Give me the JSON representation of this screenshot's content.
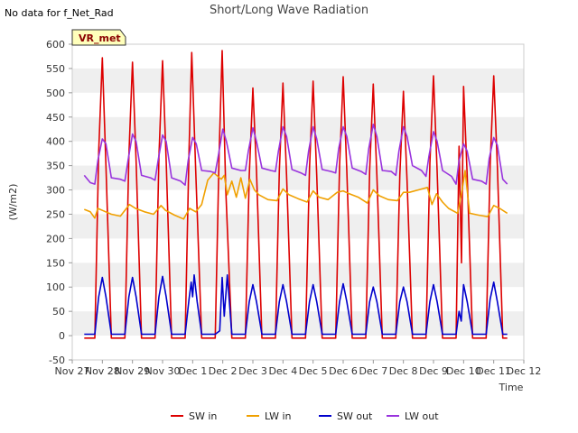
{
  "no_data_note": "No data for f_Net_Rad",
  "badge_label": "VR_met",
  "chart_data": {
    "type": "line",
    "title": "Short/Long Wave Radiation",
    "xlabel": "Time",
    "ylabel": "(W/m2)",
    "ylim": [
      -50,
      600
    ],
    "yticks": [
      -50,
      0,
      50,
      100,
      150,
      200,
      250,
      300,
      350,
      400,
      450,
      500,
      550,
      600
    ],
    "xlim": [
      0,
      15
    ],
    "xtick_labels": [
      "Nov 27",
      "Nov 28",
      "Nov 29",
      "Nov 30",
      "Dec 1",
      "Dec 2",
      "Dec 3",
      "Dec 4",
      "Dec 5",
      "Dec 6",
      "Dec 7",
      "Dec 8",
      "Dec 9",
      "Dec 10",
      "Dec 11",
      "Dec 12"
    ],
    "grid": "horizontal bands",
    "legend_position": "bottom",
    "x_unit": "days since Nov 27 00:00",
    "series": [
      {
        "name": "SW in",
        "color": "#dd0000",
        "x": [
          0.4,
          0.75,
          0.88,
          1.0,
          1.12,
          1.3,
          1.4,
          1.75,
          1.88,
          2.0,
          2.12,
          2.3,
          2.4,
          2.75,
          2.88,
          3.0,
          3.12,
          3.3,
          3.4,
          3.75,
          3.88,
          3.97,
          4.1,
          4.3,
          4.4,
          4.75,
          4.88,
          4.98,
          5.1,
          5.3,
          5.4,
          5.75,
          5.88,
          6.0,
          6.12,
          6.3,
          6.4,
          6.75,
          6.88,
          7.0,
          7.12,
          7.3,
          7.4,
          7.75,
          7.88,
          8.0,
          8.12,
          8.3,
          8.4,
          8.75,
          8.88,
          9.0,
          9.12,
          9.3,
          9.4,
          9.75,
          9.88,
          10.0,
          10.12,
          10.3,
          10.4,
          10.75,
          10.88,
          11.0,
          11.12,
          11.3,
          11.4,
          11.75,
          11.88,
          12.0,
          12.12,
          12.3,
          12.4,
          12.75,
          12.85,
          12.93,
          13.0,
          13.12,
          13.3,
          13.4,
          13.75,
          13.88,
          14.0,
          14.12,
          14.3,
          14.45
        ],
        "values": [
          -5,
          -5,
          380,
          572,
          350,
          -5,
          -5,
          -5,
          370,
          563,
          360,
          -5,
          -5,
          -5,
          370,
          566,
          360,
          -5,
          -5,
          -5,
          380,
          583,
          340,
          -5,
          -5,
          -5,
          380,
          587,
          300,
          -5,
          -5,
          -5,
          330,
          510,
          340,
          -5,
          -5,
          -5,
          340,
          520,
          330,
          -5,
          -5,
          -5,
          345,
          524,
          330,
          -5,
          -5,
          -5,
          350,
          533,
          340,
          -5,
          -5,
          -5,
          340,
          518,
          330,
          -5,
          -5,
          -5,
          330,
          503,
          320,
          -5,
          -5,
          -5,
          355,
          535,
          340,
          -5,
          -5,
          -5,
          390,
          150,
          513,
          330,
          -5,
          -5,
          -5,
          350,
          535,
          350,
          -5,
          -5
        ]
      },
      {
        "name": "LW in",
        "color": "#f0a000",
        "x": [
          0.4,
          0.6,
          0.75,
          0.85,
          1.0,
          1.3,
          1.6,
          1.9,
          2.1,
          2.4,
          2.7,
          2.95,
          3.1,
          3.4,
          3.7,
          3.9,
          4.1,
          4.3,
          4.5,
          4.7,
          4.95,
          5.05,
          5.15,
          5.3,
          5.45,
          5.6,
          5.75,
          5.9,
          6.05,
          6.2,
          6.5,
          6.8,
          7.0,
          7.2,
          7.5,
          7.8,
          8.0,
          8.2,
          8.5,
          8.8,
          9.0,
          9.2,
          9.5,
          9.8,
          10.0,
          10.2,
          10.5,
          10.8,
          11.0,
          11.2,
          11.5,
          11.8,
          11.95,
          12.1,
          12.3,
          12.5,
          12.8,
          12.95,
          13.05,
          13.2,
          13.5,
          13.8,
          14.0,
          14.2,
          14.45
        ],
        "values": [
          260,
          255,
          242,
          262,
          258,
          250,
          246,
          270,
          262,
          255,
          250,
          268,
          258,
          248,
          240,
          262,
          255,
          270,
          320,
          335,
          322,
          330,
          290,
          318,
          285,
          325,
          283,
          322,
          300,
          290,
          280,
          278,
          302,
          290,
          282,
          275,
          298,
          285,
          280,
          295,
          298,
          292,
          285,
          273,
          300,
          288,
          280,
          278,
          295,
          295,
          300,
          305,
          270,
          292,
          275,
          262,
          252,
          300,
          340,
          252,
          248,
          245,
          268,
          262,
          252
        ]
      },
      {
        "name": "SW out",
        "color": "#0000cc",
        "x": [
          0.4,
          0.75,
          0.88,
          1.0,
          1.12,
          1.3,
          1.4,
          1.75,
          1.88,
          2.0,
          2.12,
          2.3,
          2.4,
          2.75,
          2.88,
          3.0,
          3.12,
          3.3,
          3.4,
          3.75,
          3.88,
          3.95,
          4.0,
          4.05,
          4.15,
          4.3,
          4.6,
          4.75,
          4.9,
          4.98,
          5.05,
          5.15,
          5.3,
          5.4,
          5.75,
          5.88,
          6.0,
          6.12,
          6.3,
          6.4,
          6.75,
          6.88,
          7.0,
          7.12,
          7.3,
          7.4,
          7.75,
          7.88,
          8.0,
          8.12,
          8.3,
          8.4,
          8.75,
          8.88,
          9.0,
          9.12,
          9.3,
          9.4,
          9.75,
          9.88,
          10.0,
          10.12,
          10.3,
          10.4,
          10.75,
          10.88,
          11.0,
          11.12,
          11.3,
          11.4,
          11.75,
          11.88,
          12.0,
          12.12,
          12.3,
          12.4,
          12.75,
          12.85,
          12.92,
          13.0,
          13.12,
          13.3,
          13.4,
          13.75,
          13.88,
          14.0,
          14.12,
          14.3,
          14.45
        ],
        "values": [
          3,
          3,
          80,
          120,
          80,
          3,
          3,
          3,
          80,
          120,
          80,
          3,
          3,
          3,
          80,
          122,
          80,
          3,
          3,
          3,
          75,
          110,
          80,
          125,
          70,
          3,
          3,
          3,
          10,
          120,
          40,
          125,
          3,
          3,
          3,
          70,
          105,
          70,
          3,
          3,
          3,
          70,
          105,
          70,
          3,
          3,
          3,
          70,
          105,
          70,
          3,
          3,
          3,
          70,
          107,
          70,
          3,
          3,
          3,
          70,
          100,
          70,
          3,
          3,
          3,
          70,
          100,
          70,
          3,
          3,
          3,
          70,
          105,
          70,
          3,
          3,
          3,
          50,
          30,
          105,
          70,
          3,
          3,
          3,
          75,
          110,
          70,
          3,
          3
        ]
      },
      {
        "name": "LW out",
        "color": "#9933dd",
        "x": [
          0.4,
          0.6,
          0.75,
          0.85,
          1.0,
          1.12,
          1.3,
          1.6,
          1.75,
          1.85,
          2.0,
          2.12,
          2.3,
          2.6,
          2.75,
          2.85,
          3.0,
          3.12,
          3.3,
          3.6,
          3.75,
          3.85,
          4.0,
          4.12,
          4.3,
          4.6,
          4.75,
          4.85,
          5.0,
          5.12,
          5.3,
          5.6,
          5.75,
          5.85,
          6.0,
          6.12,
          6.3,
          6.6,
          6.75,
          6.85,
          7.0,
          7.12,
          7.3,
          7.6,
          7.75,
          7.85,
          8.0,
          8.12,
          8.3,
          8.6,
          8.75,
          8.85,
          9.0,
          9.12,
          9.3,
          9.6,
          9.75,
          9.85,
          10.0,
          10.12,
          10.3,
          10.6,
          10.75,
          10.85,
          11.0,
          11.12,
          11.3,
          11.6,
          11.75,
          11.85,
          12.0,
          12.12,
          12.3,
          12.6,
          12.75,
          12.85,
          13.0,
          13.12,
          13.3,
          13.6,
          13.75,
          13.85,
          14.0,
          14.12,
          14.3,
          14.45
        ],
        "values": [
          330,
          315,
          312,
          360,
          405,
          395,
          325,
          322,
          318,
          360,
          415,
          400,
          330,
          325,
          320,
          360,
          413,
          400,
          325,
          318,
          310,
          360,
          408,
          395,
          340,
          338,
          335,
          370,
          425,
          400,
          345,
          340,
          340,
          380,
          428,
          400,
          345,
          340,
          338,
          380,
          430,
          410,
          342,
          335,
          330,
          380,
          430,
          405,
          342,
          338,
          335,
          385,
          430,
          410,
          345,
          338,
          332,
          385,
          435,
          410,
          340,
          338,
          330,
          380,
          430,
          410,
          350,
          340,
          328,
          370,
          420,
          400,
          340,
          328,
          312,
          360,
          395,
          380,
          322,
          318,
          312,
          365,
          408,
          392,
          322,
          312
        ]
      }
    ]
  }
}
